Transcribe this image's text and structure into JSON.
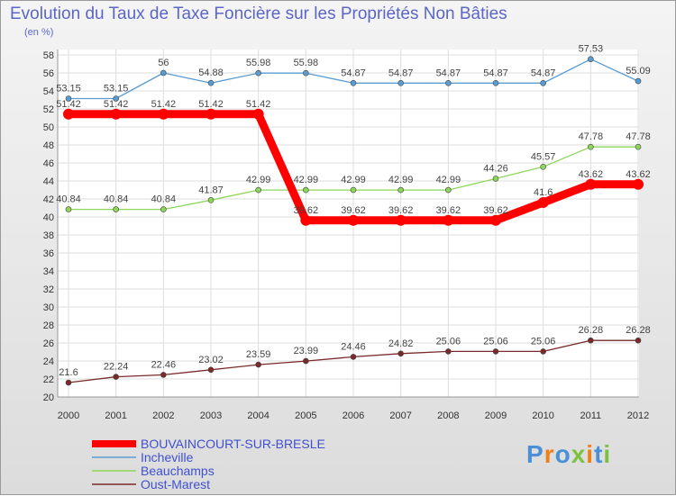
{
  "chart_data": {
    "type": "line",
    "title": "Evolution du Taux de Taxe Foncière sur les Propriétés Non Bâties",
    "ylabel": "(en %)",
    "xlabel": "",
    "ylim": [
      20,
      58
    ],
    "ytick_step": 2,
    "grid": true,
    "legend_position": "bottom-left",
    "x": [
      "2000",
      "2001",
      "2002",
      "2003",
      "2004",
      "2005",
      "2006",
      "2007",
      "2008",
      "2009",
      "2010",
      "2011",
      "2012"
    ],
    "series": [
      {
        "name": "Incheville",
        "color": "#5a9bd0",
        "values": [
          53.15,
          53.15,
          56,
          54.88,
          55.98,
          55.98,
          54.87,
          54.87,
          54.87,
          54.87,
          54.87,
          57.53,
          55.09
        ],
        "labels": [
          "53.15",
          "53.15",
          "56",
          "54.88",
          "55.98",
          "55.98",
          "54.87",
          "54.87",
          "54.87",
          "54.87",
          "54.87",
          "57.53",
          "55.09"
        ]
      },
      {
        "name": "Beauchamps",
        "color": "#8ed65a",
        "values": [
          40.84,
          40.84,
          40.84,
          41.87,
          42.99,
          42.99,
          42.99,
          42.99,
          42.99,
          44.26,
          45.57,
          47.78,
          47.78
        ],
        "labels": [
          "40.84",
          "40.84",
          "40.84",
          "41.87",
          "42.99",
          "42.99",
          "42.99",
          "42.99",
          "42.99",
          "44.26",
          "45.57",
          "47.78",
          "47.78"
        ]
      },
      {
        "name": "Oust-Marest",
        "color": "#7a2a2a",
        "values": [
          21.6,
          22.24,
          22.46,
          23.02,
          23.59,
          23.99,
          24.46,
          24.82,
          25.06,
          25.06,
          25.06,
          26.28,
          26.28
        ],
        "labels": [
          "21.6",
          "22.24",
          "22.46",
          "23.02",
          "23.59",
          "23.99",
          "24.46",
          "24.82",
          "25.06",
          "25.06",
          "25.06",
          "26.28",
          "26.28"
        ]
      },
      {
        "name": "BOUVAINCOURT-SUR-BRESLE",
        "color": "#ff0000",
        "highlight": true,
        "values": [
          51.42,
          51.42,
          51.42,
          51.42,
          51.42,
          39.62,
          39.62,
          39.62,
          39.62,
          39.62,
          41.6,
          43.62,
          43.62
        ],
        "labels": [
          "51.42",
          "51.42",
          "51.42",
          "51.42",
          "51.42",
          "39.62",
          "39.62",
          "39.62",
          "39.62",
          "39.62",
          "41.6",
          "43.62",
          "43.62"
        ]
      }
    ],
    "legend_order": [
      "BOUVAINCOURT-SUR-BRESLE",
      "Incheville",
      "Beauchamps",
      "Oust-Marest"
    ]
  },
  "logo": {
    "text": "Proxiti"
  }
}
